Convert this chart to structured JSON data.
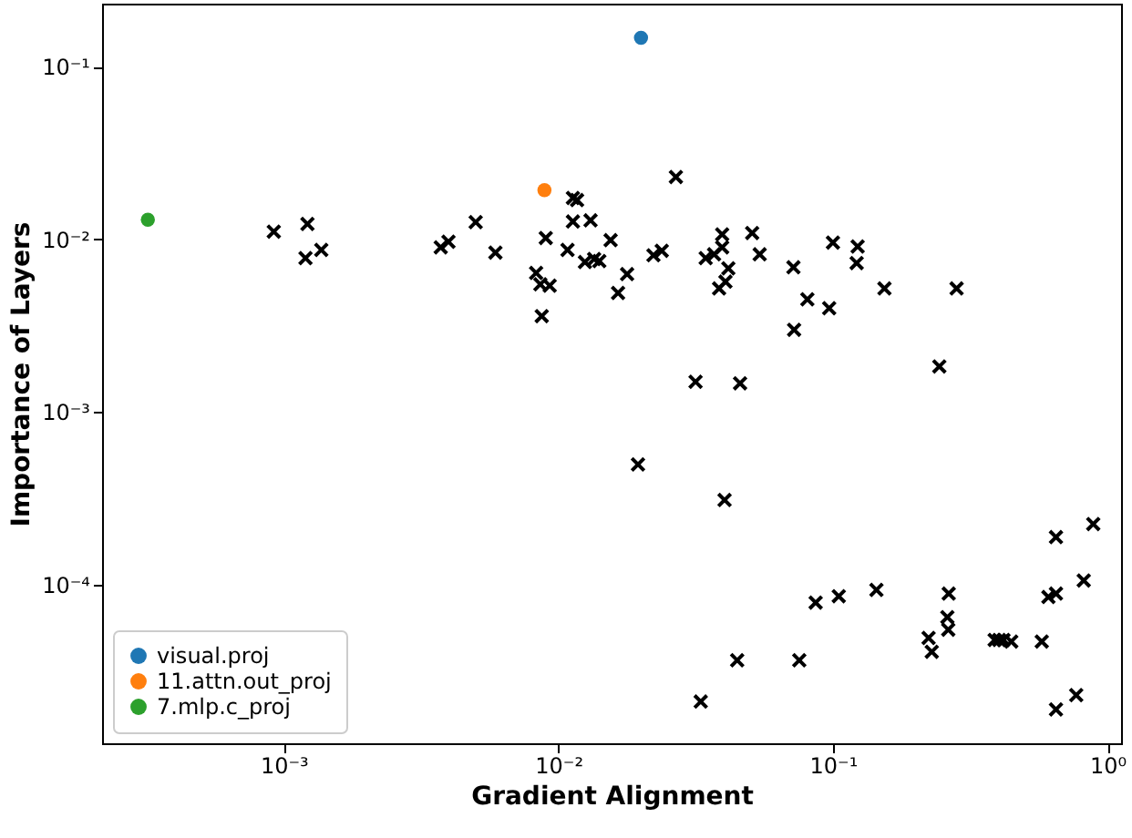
{
  "chart_data": {
    "type": "scatter",
    "xlabel": "Gradient Alignment",
    "ylabel": "Importance of Layers",
    "log": "xy",
    "grid": false,
    "legend": "bottom left",
    "xlim": [
      0.000218,
      1.12
    ],
    "ylim": [
      1.21e-05,
      0.232
    ],
    "xticks": [
      {
        "value": 0.001,
        "label": "10⁻³"
      },
      {
        "value": 0.01,
        "label": "10⁻²"
      },
      {
        "value": 0.1,
        "label": "10⁻¹"
      },
      {
        "value": 1,
        "label": "10⁰"
      }
    ],
    "yticks": [
      {
        "value": 0.0001,
        "label": "10⁻⁴"
      },
      {
        "value": 0.001,
        "label": "10⁻³"
      },
      {
        "value": 0.01,
        "label": "10⁻²"
      },
      {
        "value": 0.1,
        "label": "10⁻¹"
      }
    ],
    "series": [
      {
        "color": "#000000",
        "marker": "cross",
        "x": [
          0.00092,
          0.00122,
          0.0012,
          0.00137,
          0.00373,
          0.00398,
          0.005,
          0.0059,
          0.0083,
          0.0086,
          0.0093,
          0.0087,
          0.009,
          0.0108,
          0.0113,
          0.0117,
          0.0113,
          0.0131,
          0.0125,
          0.0135,
          0.0141,
          0.0155,
          0.0165,
          0.0178,
          0.0195,
          0.0222,
          0.0238,
          0.0268,
          0.0316,
          0.033,
          0.0344,
          0.0369,
          0.0395,
          0.0395,
          0.0385,
          0.0416,
          0.0406,
          0.0403,
          0.0459,
          0.0448,
          0.0508,
          0.0541,
          0.0718,
          0.0722,
          0.0754,
          0.0807,
          0.0865,
          0.0969,
          0.1,
          0.105,
          0.123,
          0.122,
          0.144,
          0.154,
          0.244,
          0.223,
          0.229,
          0.263,
          0.261,
          0.264,
          0.282,
          0.388,
          0.403,
          0.418,
          0.446,
          0.576,
          0.609,
          0.649,
          0.649,
          0.649,
          0.769,
          0.819,
          0.887
        ],
        "values": [
          0.0111,
          0.0123,
          0.0078,
          0.0087,
          0.009,
          0.0097,
          0.0126,
          0.0084,
          0.0064,
          0.0055,
          0.0054,
          0.0036,
          0.0102,
          0.0087,
          0.0174,
          0.0169,
          0.0127,
          0.0129,
          0.0074,
          0.0077,
          0.0075,
          0.0099,
          0.0049,
          0.0063,
          0.000498,
          0.0081,
          0.0086,
          0.023,
          0.0015,
          2.11e-05,
          0.0078,
          0.0082,
          0.0107,
          0.009,
          0.0052,
          0.0068,
          0.0057,
          0.00031,
          0.00147,
          3.66e-05,
          0.0109,
          0.0082,
          0.0069,
          0.003,
          3.66e-05,
          0.0045,
          7.9e-05,
          0.004,
          0.0096,
          8.6e-05,
          0.0091,
          0.0073,
          9.35e-05,
          0.0052,
          0.00184,
          4.93e-05,
          4.1e-05,
          5.5e-05,
          6.5e-05,
          8.9e-05,
          0.0052,
          4.8e-05,
          4.8e-05,
          4.8e-05,
          4.7e-05,
          4.7e-05,
          8.5e-05,
          8.9e-05,
          0.000189,
          1.9e-05,
          2.3e-05,
          0.000106,
          0.000225
        ]
      },
      {
        "name": "visual.proj",
        "color": "#1f77b4",
        "marker": "circle",
        "x": [
          0.02
        ],
        "values": [
          0.147
        ]
      },
      {
        "name": "11.attn.out_proj",
        "color": "#ff7f0e",
        "marker": "circle",
        "x": [
          0.0089
        ],
        "values": [
          0.0193
        ]
      },
      {
        "name": "7.mlp.c_proj",
        "color": "#2ca02c",
        "marker": "circle",
        "x": [
          0.00032
        ],
        "values": [
          0.013
        ]
      }
    ]
  }
}
